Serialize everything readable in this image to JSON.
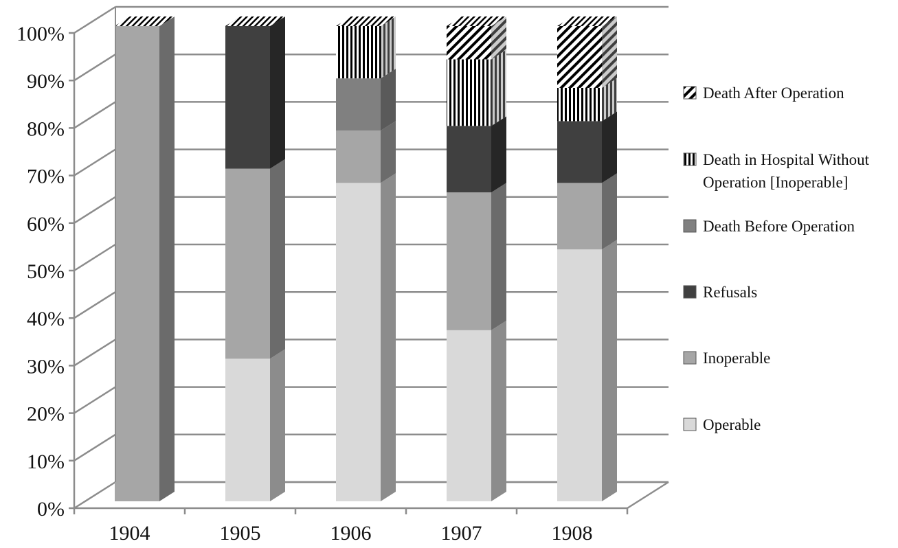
{
  "chart_data": {
    "type": "bar",
    "stacked": true,
    "three_d": true,
    "title": "",
    "xlabel": "",
    "ylabel": "",
    "ylim": [
      0,
      100
    ],
    "y_tick_labels": [
      "0%",
      "10%",
      "20%",
      "30%",
      "40%",
      "50%",
      "60%",
      "70%",
      "80%",
      "90%",
      "100%"
    ],
    "categories": [
      "1904",
      "1905",
      "1906",
      "1907",
      "1908"
    ],
    "grid": true,
    "legend_position": "right",
    "series": [
      {
        "name": "Operable",
        "values": [
          0,
          30,
          67,
          36,
          53
        ],
        "fill": "#d9d9d9",
        "side": "#8c8c8c",
        "pattern": "solid"
      },
      {
        "name": "Inoperable",
        "values": [
          100,
          40,
          11,
          29,
          14
        ],
        "fill": "#a6a6a6",
        "side": "#6b6b6b",
        "pattern": "solid"
      },
      {
        "name": "Refusals",
        "values": [
          0,
          30,
          0,
          14,
          13
        ],
        "fill": "#404040",
        "side": "#262626",
        "pattern": "solid"
      },
      {
        "name": "Death Before Operation",
        "values": [
          0,
          0,
          11,
          0,
          0
        ],
        "fill": "#808080",
        "side": "#5a5a5a",
        "pattern": "solid"
      },
      {
        "name": "Death in Hospital Without Operation [Inoperable]",
        "values": [
          0,
          0,
          11,
          14,
          7
        ],
        "fill": "#ffffff",
        "side": "#8c8c8c",
        "pattern": "vertical-stripes"
      },
      {
        "name": "Death After Operation",
        "values": [
          0,
          0,
          0,
          7,
          13
        ],
        "fill": "#ffffff",
        "side": "#8c8c8c",
        "pattern": "diagonal-stripes"
      }
    ],
    "legend_lines": [
      [
        "Death After Operation"
      ],
      [
        "Death in Hospital Without",
        "Operation [Inoperable]"
      ],
      [
        "Death Before Operation"
      ],
      [
        "Refusals"
      ],
      [
        "Inoperable"
      ],
      [
        "Operable"
      ]
    ]
  }
}
